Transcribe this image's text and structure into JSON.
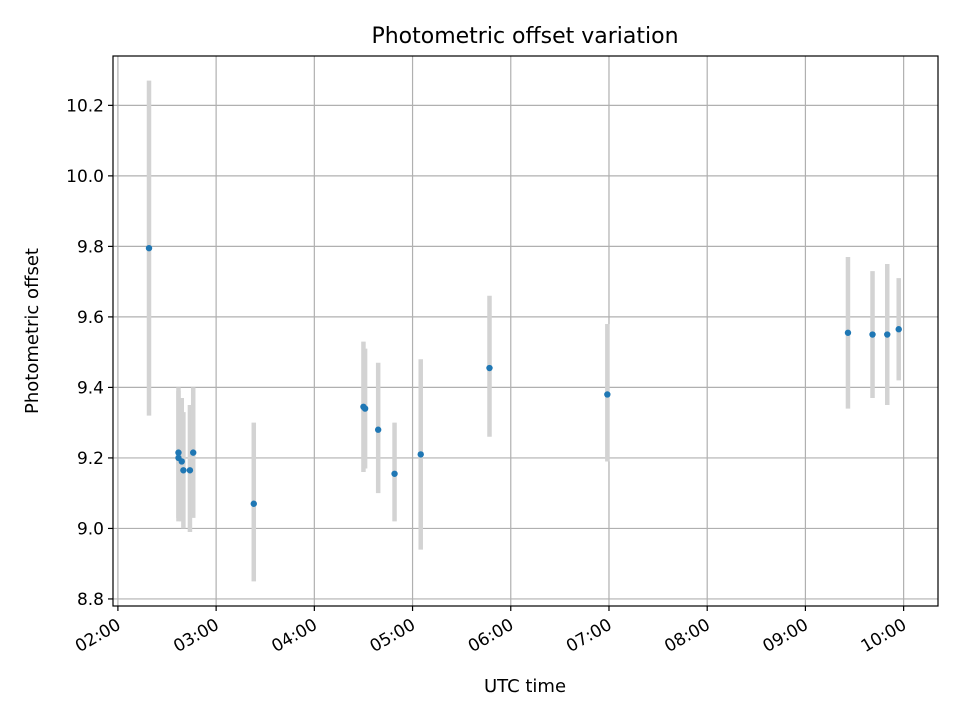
{
  "chart_data": {
    "type": "scatter",
    "title": "Photometric offset variation",
    "xlabel": "UTC time",
    "ylabel": "Photometric offset",
    "x_ticks": [
      "02:00",
      "03:00",
      "04:00",
      "05:00",
      "06:00",
      "07:00",
      "08:00",
      "09:00",
      "10:00"
    ],
    "y_ticks": [
      "8.8",
      "9.0",
      "9.2",
      "9.4",
      "9.6",
      "9.8",
      "10.0",
      "10.2"
    ],
    "xlim": [
      "01:57",
      "10:21"
    ],
    "ylim": [
      8.78,
      10.34
    ],
    "grid": true,
    "colors": {
      "point": "#1f77b4",
      "errorbar": "#d3d3d3",
      "grid": "#b0b0b0"
    },
    "points": [
      {
        "x": "02:19",
        "y": 9.795,
        "err_low": 9.32,
        "err_high": 10.27
      },
      {
        "x": "02:37",
        "y": 9.215,
        "err_low": 9.02,
        "err_high": 9.4
      },
      {
        "x": "02:37",
        "y": 9.2,
        "err_low": 9.03,
        "err_high": 9.39
      },
      {
        "x": "02:39",
        "y": 9.19,
        "err_low": 9.02,
        "err_high": 9.37
      },
      {
        "x": "02:40",
        "y": 9.165,
        "err_low": 9.0,
        "err_high": 9.33
      },
      {
        "x": "02:44",
        "y": 9.165,
        "err_low": 8.99,
        "err_high": 9.35
      },
      {
        "x": "02:46",
        "y": 9.215,
        "err_low": 9.03,
        "err_high": 9.4
      },
      {
        "x": "03:23",
        "y": 9.07,
        "err_low": 8.85,
        "err_high": 9.3
      },
      {
        "x": "04:30",
        "y": 9.345,
        "err_low": 9.16,
        "err_high": 9.53
      },
      {
        "x": "04:31",
        "y": 9.34,
        "err_low": 9.17,
        "err_high": 9.51
      },
      {
        "x": "04:39",
        "y": 9.28,
        "err_low": 9.1,
        "err_high": 9.47
      },
      {
        "x": "04:49",
        "y": 9.155,
        "err_low": 9.02,
        "err_high": 9.3
      },
      {
        "x": "05:05",
        "y": 9.21,
        "err_low": 8.94,
        "err_high": 9.48
      },
      {
        "x": "05:47",
        "y": 9.455,
        "err_low": 9.26,
        "err_high": 9.66
      },
      {
        "x": "06:59",
        "y": 9.38,
        "err_low": 9.19,
        "err_high": 9.58
      },
      {
        "x": "09:26",
        "y": 9.555,
        "err_low": 9.34,
        "err_high": 9.77
      },
      {
        "x": "09:41",
        "y": 9.55,
        "err_low": 9.37,
        "err_high": 9.73
      },
      {
        "x": "09:50",
        "y": 9.55,
        "err_low": 9.35,
        "err_high": 9.75
      },
      {
        "x": "09:57",
        "y": 9.565,
        "err_low": 9.42,
        "err_high": 9.71
      }
    ]
  }
}
